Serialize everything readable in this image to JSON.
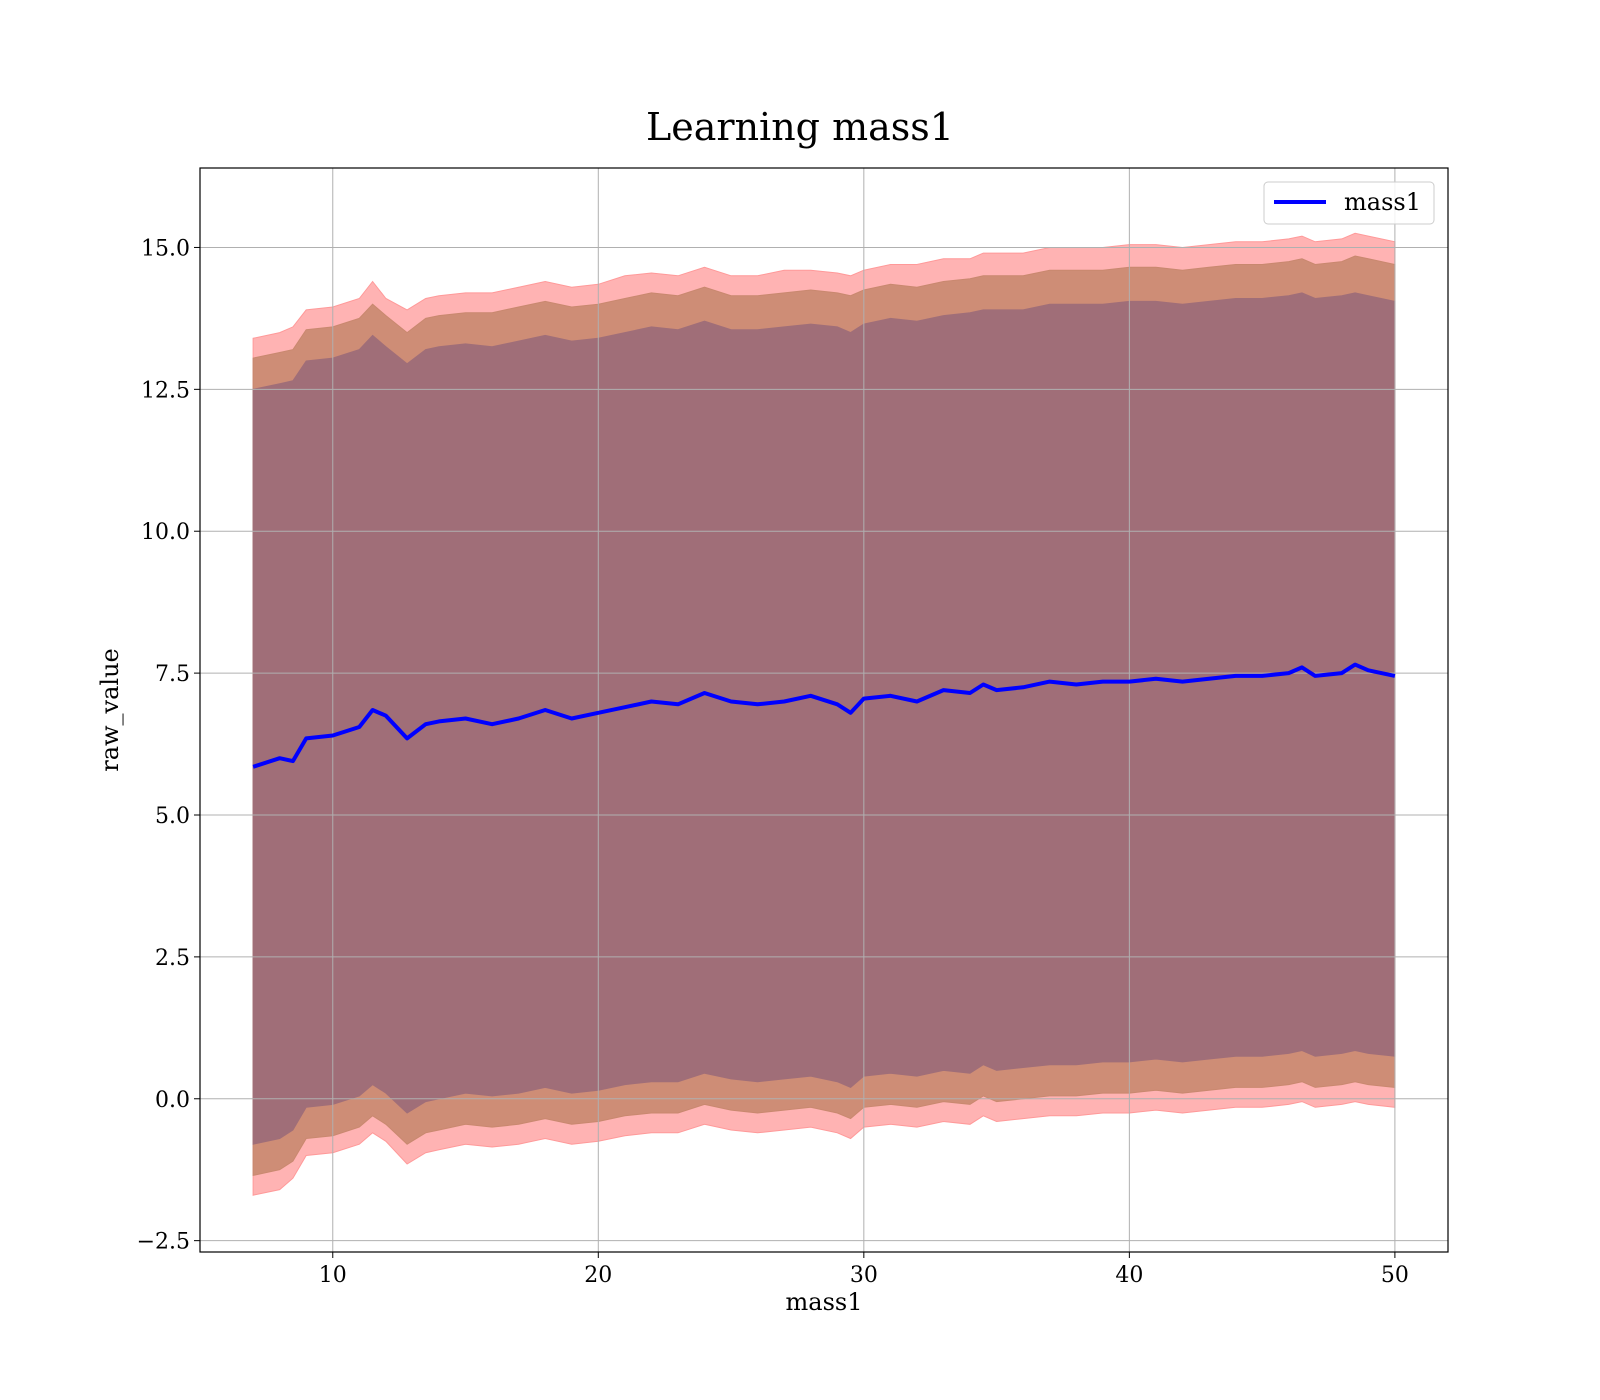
{
  "chart_data": {
    "type": "area",
    "title": "Learning mass1",
    "xlabel": "mass1",
    "ylabel": "raw_value",
    "xlim": [
      5,
      52
    ],
    "ylim": [
      -2.7,
      16.4
    ],
    "x_ticks": [
      10,
      20,
      30,
      40,
      50
    ],
    "y_ticks": [
      -2.5,
      0.0,
      2.5,
      5.0,
      7.5,
      10.0,
      12.5,
      15.0
    ],
    "x_tick_labels": [
      "10",
      "20",
      "30",
      "40",
      "50"
    ],
    "y_tick_labels": [
      "−2.5",
      "0.0",
      "2.5",
      "5.0",
      "7.5",
      "10.0",
      "12.5",
      "15.0"
    ],
    "grid": true,
    "legend_position": "top-right",
    "colors": {
      "line": "#0000ff",
      "band_outer": "#ff9999",
      "band_middle": "#c9886f",
      "band_inner": "#a06e78",
      "grid": "#b0b0b0"
    },
    "x": [
      7,
      8,
      8.5,
      9,
      10,
      11,
      11.5,
      12,
      12.8,
      13.5,
      14,
      15,
      16,
      17,
      18,
      19,
      20,
      21,
      22,
      23,
      24,
      25,
      26,
      27,
      28,
      29,
      29.5,
      30,
      31,
      32,
      33,
      34,
      34.5,
      35,
      36,
      37,
      38,
      39,
      40,
      41,
      42,
      43,
      44,
      45,
      46,
      46.5,
      47,
      48,
      48.5,
      49,
      50
    ],
    "series": [
      {
        "name": "mass1",
        "style": "line",
        "values": [
          5.85,
          6.0,
          5.95,
          6.35,
          6.4,
          6.55,
          6.85,
          6.75,
          6.35,
          6.6,
          6.65,
          6.7,
          6.6,
          6.7,
          6.85,
          6.7,
          6.8,
          6.9,
          7.0,
          6.95,
          7.15,
          7.0,
          6.95,
          7.0,
          7.1,
          6.95,
          6.8,
          7.05,
          7.1,
          7.0,
          7.2,
          7.15,
          7.3,
          7.2,
          7.25,
          7.35,
          7.3,
          7.35,
          7.35,
          7.4,
          7.35,
          7.4,
          7.45,
          7.45,
          7.5,
          7.6,
          7.45,
          7.5,
          7.65,
          7.55,
          7.45
        ]
      },
      {
        "name": "band_outer_upper",
        "style": "band",
        "values": [
          13.4,
          13.5,
          13.6,
          13.9,
          13.95,
          14.1,
          14.4,
          14.1,
          13.9,
          14.1,
          14.15,
          14.2,
          14.2,
          14.3,
          14.4,
          14.3,
          14.35,
          14.5,
          14.55,
          14.5,
          14.65,
          14.5,
          14.5,
          14.6,
          14.6,
          14.55,
          14.5,
          14.6,
          14.7,
          14.7,
          14.8,
          14.8,
          14.9,
          14.9,
          14.9,
          15.0,
          15.0,
          15.0,
          15.05,
          15.05,
          15.0,
          15.05,
          15.1,
          15.1,
          15.15,
          15.2,
          15.1,
          15.15,
          15.25,
          15.2,
          15.1
        ]
      },
      {
        "name": "band_outer_lower",
        "style": "band",
        "values": [
          -1.7,
          -1.6,
          -1.4,
          -1.0,
          -0.95,
          -0.8,
          -0.6,
          -0.75,
          -1.15,
          -0.95,
          -0.9,
          -0.8,
          -0.85,
          -0.8,
          -0.7,
          -0.8,
          -0.75,
          -0.65,
          -0.6,
          -0.6,
          -0.45,
          -0.55,
          -0.6,
          -0.55,
          -0.5,
          -0.6,
          -0.7,
          -0.5,
          -0.45,
          -0.5,
          -0.4,
          -0.45,
          -0.3,
          -0.4,
          -0.35,
          -0.3,
          -0.3,
          -0.25,
          -0.25,
          -0.2,
          -0.25,
          -0.2,
          -0.15,
          -0.15,
          -0.1,
          -0.05,
          -0.15,
          -0.1,
          -0.05,
          -0.1,
          -0.15
        ]
      },
      {
        "name": "band_middle_upper",
        "style": "band",
        "values": [
          13.05,
          13.15,
          13.2,
          13.55,
          13.6,
          13.75,
          14.0,
          13.8,
          13.5,
          13.75,
          13.8,
          13.85,
          13.85,
          13.95,
          14.05,
          13.95,
          14.0,
          14.1,
          14.2,
          14.15,
          14.3,
          14.15,
          14.15,
          14.2,
          14.25,
          14.2,
          14.15,
          14.25,
          14.35,
          14.3,
          14.4,
          14.45,
          14.5,
          14.5,
          14.5,
          14.6,
          14.6,
          14.6,
          14.65,
          14.65,
          14.6,
          14.65,
          14.7,
          14.7,
          14.75,
          14.8,
          14.7,
          14.75,
          14.85,
          14.8,
          14.7
        ]
      },
      {
        "name": "band_middle_lower",
        "style": "band",
        "values": [
          -1.35,
          -1.25,
          -1.1,
          -0.7,
          -0.65,
          -0.5,
          -0.3,
          -0.45,
          -0.8,
          -0.6,
          -0.55,
          -0.45,
          -0.5,
          -0.45,
          -0.35,
          -0.45,
          -0.4,
          -0.3,
          -0.25,
          -0.25,
          -0.1,
          -0.2,
          -0.25,
          -0.2,
          -0.15,
          -0.25,
          -0.35,
          -0.15,
          -0.1,
          -0.15,
          -0.05,
          -0.1,
          0.05,
          -0.05,
          0.0,
          0.05,
          0.05,
          0.1,
          0.1,
          0.15,
          0.1,
          0.15,
          0.2,
          0.2,
          0.25,
          0.3,
          0.2,
          0.25,
          0.3,
          0.25,
          0.2
        ]
      },
      {
        "name": "band_inner_upper",
        "style": "band",
        "values": [
          12.5,
          12.6,
          12.65,
          13.0,
          13.05,
          13.2,
          13.45,
          13.25,
          12.95,
          13.2,
          13.25,
          13.3,
          13.25,
          13.35,
          13.45,
          13.35,
          13.4,
          13.5,
          13.6,
          13.55,
          13.7,
          13.55,
          13.55,
          13.6,
          13.65,
          13.6,
          13.5,
          13.65,
          13.75,
          13.7,
          13.8,
          13.85,
          13.9,
          13.9,
          13.9,
          14.0,
          14.0,
          14.0,
          14.05,
          14.05,
          14.0,
          14.05,
          14.1,
          14.1,
          14.15,
          14.2,
          14.1,
          14.15,
          14.2,
          14.15,
          14.05
        ]
      },
      {
        "name": "band_inner_lower",
        "style": "band",
        "values": [
          -0.8,
          -0.7,
          -0.55,
          -0.15,
          -0.1,
          0.05,
          0.25,
          0.1,
          -0.25,
          -0.05,
          0.0,
          0.1,
          0.05,
          0.1,
          0.2,
          0.1,
          0.15,
          0.25,
          0.3,
          0.3,
          0.45,
          0.35,
          0.3,
          0.35,
          0.4,
          0.3,
          0.2,
          0.4,
          0.45,
          0.4,
          0.5,
          0.45,
          0.6,
          0.5,
          0.55,
          0.6,
          0.6,
          0.65,
          0.65,
          0.7,
          0.65,
          0.7,
          0.75,
          0.75,
          0.8,
          0.85,
          0.75,
          0.8,
          0.85,
          0.8,
          0.75
        ]
      }
    ],
    "legend": [
      "mass1"
    ]
  }
}
